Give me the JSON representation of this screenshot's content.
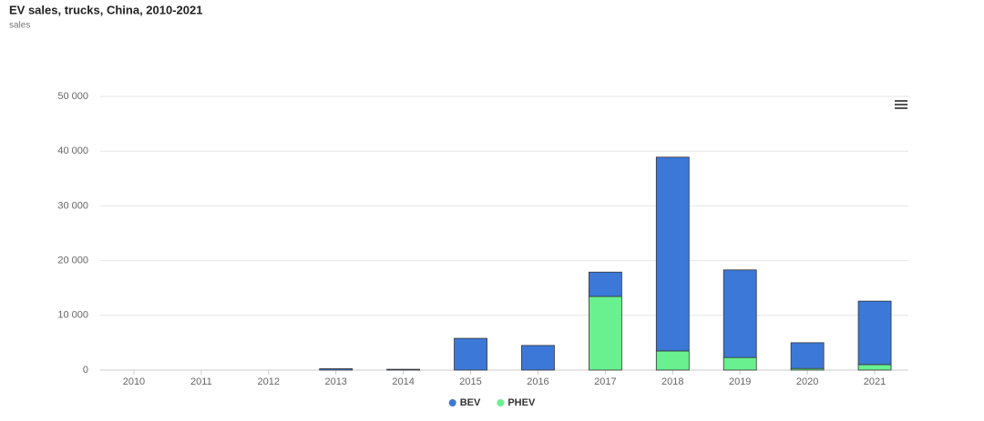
{
  "chart_data": {
    "type": "stacked-bar",
    "title": "EV sales, trucks, China, 2010-2021",
    "subtitle": "sales",
    "categories": [
      "2010",
      "2011",
      "2012",
      "2013",
      "2014",
      "2015",
      "2016",
      "2017",
      "2018",
      "2019",
      "2020",
      "2021"
    ],
    "series": [
      {
        "name": "BEV",
        "color": "#3c78d8",
        "values": [
          0,
          0,
          0,
          250,
          150,
          5800,
          4500,
          4450,
          35400,
          16000,
          4700,
          11600
        ]
      },
      {
        "name": "PHEV",
        "color": "#69f18f",
        "values": [
          0,
          0,
          0,
          0,
          0,
          0,
          0,
          13450,
          3500,
          2300,
          300,
          1000
        ]
      }
    ],
    "ylim": [
      0,
      50000
    ],
    "yticks": [
      0,
      {
        "value": 10000,
        "label": "10 000"
      },
      {
        "value": 20000,
        "label": "20 000"
      },
      {
        "value": 30000,
        "label": "30 000"
      },
      {
        "value": 40000,
        "label": "40 000"
      },
      {
        "value": 50000,
        "label": "50 000"
      }
    ],
    "grid": true,
    "legend": "bottom"
  }
}
